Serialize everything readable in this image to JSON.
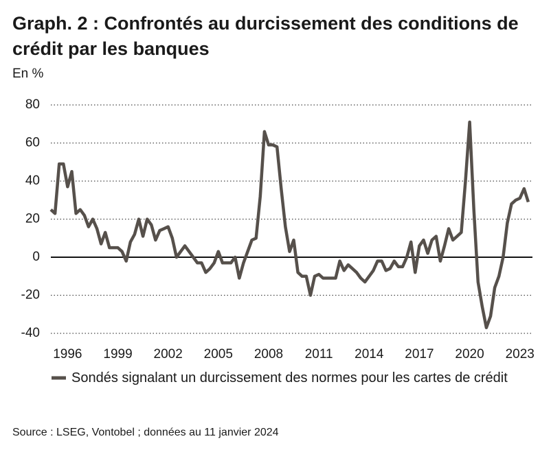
{
  "chart_data": {
    "type": "line",
    "title": "Graph. 2 : Confrontés au durcissement des conditions de crédit par les banques",
    "y_label": "En %",
    "source": "Source : LSEG, Vontobel ; données au 11 janvier 2024",
    "x": [
      1995,
      1995.25,
      1995.5,
      1995.75,
      1996,
      1996.25,
      1996.5,
      1996.75,
      1997,
      1997.25,
      1997.5,
      1997.75,
      1998,
      1998.25,
      1998.5,
      1998.75,
      1999,
      1999.25,
      1999.5,
      1999.75,
      2000,
      2000.25,
      2000.5,
      2000.75,
      2001,
      2001.25,
      2001.5,
      2001.75,
      2002,
      2002.25,
      2002.5,
      2002.75,
      2003,
      2003.25,
      2003.5,
      2003.75,
      2004,
      2004.25,
      2004.5,
      2004.75,
      2005,
      2005.25,
      2005.5,
      2005.75,
      2006,
      2006.25,
      2006.5,
      2006.75,
      2007,
      2007.25,
      2007.5,
      2007.75,
      2008,
      2008.25,
      2008.5,
      2008.75,
      2009,
      2009.25,
      2009.5,
      2009.75,
      2010,
      2010.25,
      2010.5,
      2010.75,
      2011,
      2011.25,
      2011.5,
      2011.75,
      2012,
      2012.25,
      2012.5,
      2012.75,
      2013,
      2013.25,
      2013.5,
      2013.75,
      2014,
      2014.25,
      2014.5,
      2014.75,
      2015,
      2015.25,
      2015.5,
      2015.75,
      2016,
      2016.25,
      2016.5,
      2016.75,
      2017,
      2017.25,
      2017.5,
      2017.75,
      2018,
      2018.25,
      2018.5,
      2018.75,
      2019,
      2019.25,
      2019.5,
      2019.75,
      2020,
      2020.25,
      2020.5,
      2020.75,
      2021,
      2021.25,
      2021.5,
      2021.75,
      2022,
      2022.25,
      2022.5,
      2022.75,
      2023,
      2023.25,
      2023.5
    ],
    "series": [
      {
        "name": "Sondés signalant un durcissement des normes pour les cartes de crédit",
        "color": "#56504b",
        "values": [
          25,
          23,
          49,
          49,
          37,
          45,
          23,
          25,
          22,
          16,
          20,
          15,
          7,
          13,
          5,
          5,
          5,
          3,
          -2,
          8,
          12,
          20,
          11,
          20,
          17,
          9,
          14,
          15,
          16,
          10,
          0,
          3,
          6,
          3,
          0,
          -3,
          -3,
          -8,
          -6,
          -3,
          3,
          -3,
          -3,
          -3,
          0,
          -11,
          -3,
          3,
          9,
          10,
          32,
          66,
          59,
          59,
          58,
          36,
          16,
          3,
          9,
          -8,
          -10,
          -10,
          -20,
          -10,
          -9,
          -11,
          -11,
          -11,
          -11,
          -2,
          -7,
          -4,
          -6,
          -8,
          -11,
          -13,
          -10,
          -7,
          -2,
          -2,
          -7,
          -6,
          -2,
          -5,
          -5,
          0,
          8,
          -8,
          6,
          9,
          2,
          9,
          11,
          -2,
          6,
          15,
          9,
          11,
          13,
          40,
          71,
          25,
          -13,
          -26,
          -37,
          -31,
          -16,
          -10,
          0,
          18,
          28,
          30,
          31,
          36,
          29
        ]
      }
    ],
    "xlim": [
      1995,
      2023.75
    ],
    "xticks": [
      1996,
      1999,
      2002,
      2005,
      2008,
      2011,
      2014,
      2017,
      2020,
      2023
    ],
    "ylim": [
      -40,
      80
    ],
    "yticks": [
      -40,
      -20,
      0,
      20,
      40,
      60,
      80
    ],
    "grid": true
  }
}
